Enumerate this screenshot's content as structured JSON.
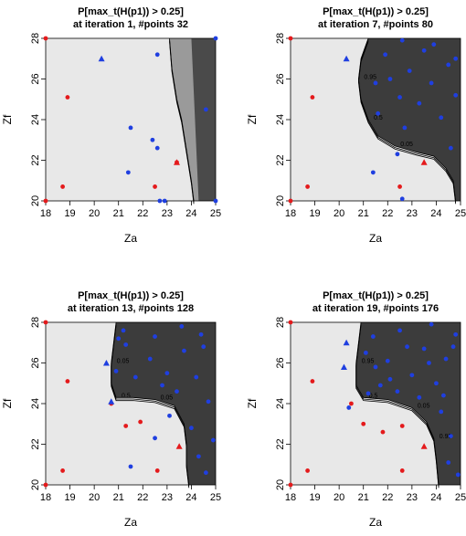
{
  "panels": [
    {
      "title": "P[max_t(H(p1)) > 0.25]",
      "subtitle": "at iteration 1, #points 32"
    },
    {
      "title": "P[max_t(H(p1)) > 0.25]",
      "subtitle": "at iteration 7, #points 80"
    },
    {
      "title": "P[max_t(H(p1)) > 0.25]",
      "subtitle": "at iteration 13, #points 128"
    },
    {
      "title": "P[max_t(H(p1)) > 0.25]",
      "subtitle": "at iteration 19, #points 176"
    }
  ],
  "colors": {
    "red": "#e41a1c",
    "blue": "#1f3fe0",
    "low_prob": "#e8e8e8",
    "high_prob": "#3c3c3c",
    "contour": "#000000"
  },
  "chart_data": [
    {
      "type": "heatmap",
      "title": "P[max_t(H(p1)) > 0.25]",
      "subtitle": "at iteration 1, #points 32",
      "xlabel": "Za",
      "ylabel": "Zf",
      "xlim": [
        18,
        25
      ],
      "ylim": [
        20,
        28
      ],
      "xticks": [
        "18",
        "19",
        "20",
        "21",
        "22",
        "23",
        "24",
        "25"
      ],
      "yticks": [
        "20",
        "22",
        "24",
        "26",
        "28"
      ],
      "contour_labels": [],
      "boundary": [
        [
          23.1,
          28
        ],
        [
          23.2,
          26.5
        ],
        [
          23.4,
          25
        ],
        [
          23.6,
          24
        ],
        [
          23.8,
          22.5
        ],
        [
          24.0,
          21
        ],
        [
          24.1,
          20
        ]
      ],
      "red_points": [
        [
          18,
          28
        ],
        [
          18.9,
          25.1
        ],
        [
          18.7,
          20.7
        ],
        [
          18,
          20
        ],
        [
          22.5,
          20.7
        ],
        [
          23.4,
          21.9
        ]
      ],
      "red_triangles": [
        [
          23.4,
          21.9
        ]
      ],
      "blue_points": [
        [
          21.5,
          23.6
        ],
        [
          21.4,
          21.4
        ],
        [
          22.4,
          23.0
        ],
        [
          22.6,
          22.6
        ],
        [
          22.7,
          20
        ],
        [
          22.9,
          20
        ],
        [
          24.6,
          24.5
        ],
        [
          22.6,
          27.2
        ],
        [
          25,
          28
        ],
        [
          25,
          20
        ]
      ],
      "blue_triangles": [
        [
          20.3,
          27.0
        ]
      ]
    },
    {
      "type": "heatmap",
      "title": "P[max_t(H(p1)) > 0.25]",
      "subtitle": "at iteration 7, #points 80",
      "xlabel": "Za",
      "ylabel": "Zf",
      "xlim": [
        18,
        25
      ],
      "ylim": [
        20,
        28
      ],
      "xticks": [
        "18",
        "19",
        "20",
        "21",
        "22",
        "23",
        "24",
        "25"
      ],
      "yticks": [
        "20",
        "22",
        "24",
        "26",
        "28"
      ],
      "contour_labels": [
        "0.95",
        "0.5",
        "0.05"
      ],
      "boundary": [
        [
          21.2,
          28
        ],
        [
          20.9,
          27
        ],
        [
          20.8,
          26
        ],
        [
          20.9,
          25
        ],
        [
          21.2,
          24
        ],
        [
          21.6,
          23.2
        ],
        [
          22.3,
          22.7
        ],
        [
          23.2,
          22.4
        ],
        [
          23.9,
          22.2
        ],
        [
          24.4,
          21.6
        ],
        [
          24.7,
          21
        ],
        [
          24.8,
          20
        ]
      ],
      "red_points": [
        [
          18,
          28
        ],
        [
          18.9,
          25.1
        ],
        [
          18.7,
          20.7
        ],
        [
          18,
          20
        ],
        [
          22.5,
          20.7
        ]
      ],
      "red_triangles": [
        [
          23.5,
          21.9
        ]
      ],
      "blue_points": [
        [
          21.4,
          21.4
        ],
        [
          21.6,
          24.3
        ],
        [
          22.1,
          26.0
        ],
        [
          22.5,
          25.1
        ],
        [
          22.9,
          26.4
        ],
        [
          23.3,
          24.8
        ],
        [
          23.8,
          25.8
        ],
        [
          24.2,
          24.1
        ],
        [
          24.5,
          26.7
        ],
        [
          22.7,
          23.6
        ],
        [
          24.6,
          22.6
        ],
        [
          23.5,
          27.4
        ],
        [
          21.9,
          27.2
        ],
        [
          22.4,
          22.3
        ],
        [
          22.6,
          20.1
        ],
        [
          21.5,
          25.8
        ],
        [
          24.8,
          25.2
        ],
        [
          23.9,
          27.7
        ],
        [
          22.6,
          27.9
        ],
        [
          24.8,
          27.0
        ]
      ],
      "blue_triangles": [
        [
          20.3,
          27.0
        ]
      ]
    },
    {
      "type": "heatmap",
      "title": "P[max_t(H(p1)) > 0.25]",
      "subtitle": "at iteration 13, #points 128",
      "xlabel": "Za",
      "ylabel": "Zf",
      "xlim": [
        18,
        25
      ],
      "ylim": [
        20,
        28
      ],
      "xticks": [
        "18",
        "19",
        "20",
        "21",
        "22",
        "23",
        "24",
        "25"
      ],
      "yticks": [
        "20",
        "22",
        "24",
        "26",
        "28"
      ],
      "contour_labels": [
        "0.05",
        "0.5",
        "0.05"
      ],
      "boundary": [
        [
          20.9,
          28
        ],
        [
          20.8,
          27
        ],
        [
          20.7,
          26
        ],
        [
          20.7,
          25.0
        ],
        [
          20.9,
          24.3
        ],
        [
          21.6,
          24.3
        ],
        [
          22.5,
          24.2
        ],
        [
          23.3,
          23.9
        ],
        [
          23.7,
          23.0
        ],
        [
          23.8,
          22
        ],
        [
          23.8,
          21
        ],
        [
          23.9,
          20
        ]
      ],
      "red_points": [
        [
          18,
          28
        ],
        [
          18.9,
          25.1
        ],
        [
          18.7,
          20.7
        ],
        [
          18,
          20
        ],
        [
          21.9,
          23.1
        ],
        [
          21.3,
          22.9
        ],
        [
          22.6,
          20.7
        ],
        [
          20.7,
          24.0
        ]
      ],
      "red_triangles": [
        [
          23.5,
          21.9
        ]
      ],
      "blue_points": [
        [
          21.5,
          20.9
        ],
        [
          22.5,
          22.3
        ],
        [
          23.1,
          23.4
        ],
        [
          21.7,
          25.3
        ],
        [
          22.3,
          26.2
        ],
        [
          23.0,
          25.5
        ],
        [
          23.7,
          26.6
        ],
        [
          24.2,
          25.3
        ],
        [
          24.7,
          24.1
        ],
        [
          22.5,
          27.3
        ],
        [
          23.6,
          27.8
        ],
        [
          24.5,
          26.8
        ],
        [
          21.3,
          26.9
        ],
        [
          24.0,
          22.8
        ],
        [
          24.3,
          21.4
        ],
        [
          24.9,
          22.2
        ],
        [
          24.6,
          20.6
        ],
        [
          21.2,
          27.6
        ],
        [
          22.8,
          24.9
        ],
        [
          24.4,
          27.4
        ],
        [
          20.9,
          25.6
        ],
        [
          21.0,
          27.2
        ],
        [
          23.4,
          24.6
        ]
      ],
      "blue_triangles": [
        [
          20.5,
          26.0
        ],
        [
          20.7,
          24.1
        ]
      ]
    },
    {
      "type": "heatmap",
      "title": "P[max_t(H(p1)) > 0.25]",
      "subtitle": "at iteration 19, #points 176",
      "xlabel": "Za",
      "ylabel": "Zf",
      "xlim": [
        18,
        25
      ],
      "ylim": [
        20,
        28
      ],
      "xticks": [
        "18",
        "19",
        "20",
        "21",
        "22",
        "23",
        "24",
        "25"
      ],
      "yticks": [
        "20",
        "22",
        "24",
        "26",
        "28"
      ],
      "contour_labels": [
        "0.95",
        "0.5",
        "0.05",
        "0.95"
      ],
      "boundary": [
        [
          20.9,
          28
        ],
        [
          20.8,
          27
        ],
        [
          20.7,
          26
        ],
        [
          20.7,
          24.9
        ],
        [
          21.0,
          24.3
        ],
        [
          22.0,
          24.2
        ],
        [
          23.0,
          23.8
        ],
        [
          23.6,
          23.1
        ],
        [
          23.9,
          22.3
        ],
        [
          24.0,
          21.3
        ],
        [
          24.1,
          20
        ]
      ],
      "red_points": [
        [
          18,
          28
        ],
        [
          18.9,
          25.1
        ],
        [
          18.7,
          20.7
        ],
        [
          18,
          20
        ],
        [
          21.0,
          23.0
        ],
        [
          21.8,
          22.6
        ],
        [
          22.6,
          20.7
        ],
        [
          20.5,
          24.0
        ],
        [
          22.6,
          22.9
        ]
      ],
      "red_triangles": [
        [
          23.5,
          21.9
        ]
      ],
      "blue_points": [
        [
          21.4,
          27.3
        ],
        [
          22.0,
          26.1
        ],
        [
          22.5,
          27.6
        ],
        [
          23.0,
          25.4
        ],
        [
          23.5,
          26.7
        ],
        [
          24.0,
          25.0
        ],
        [
          24.4,
          26.2
        ],
        [
          24.8,
          27.4
        ],
        [
          21.7,
          24.9
        ],
        [
          22.4,
          24.6
        ],
        [
          23.3,
          24.3
        ],
        [
          24.2,
          23.6
        ],
        [
          24.6,
          22.4
        ],
        [
          24.5,
          21.1
        ],
        [
          24.9,
          20.5
        ],
        [
          21.1,
          26.5
        ],
        [
          22.8,
          26.8
        ],
        [
          23.8,
          27.9
        ],
        [
          24.3,
          24.4
        ],
        [
          21.5,
          25.8
        ],
        [
          22.1,
          25.2
        ],
        [
          23.7,
          26.0
        ],
        [
          20.4,
          23.8
        ],
        [
          21.2,
          24.5
        ],
        [
          24.7,
          26.8
        ]
      ],
      "blue_triangles": [
        [
          20.3,
          27.0
        ],
        [
          20.2,
          25.8
        ]
      ]
    }
  ]
}
